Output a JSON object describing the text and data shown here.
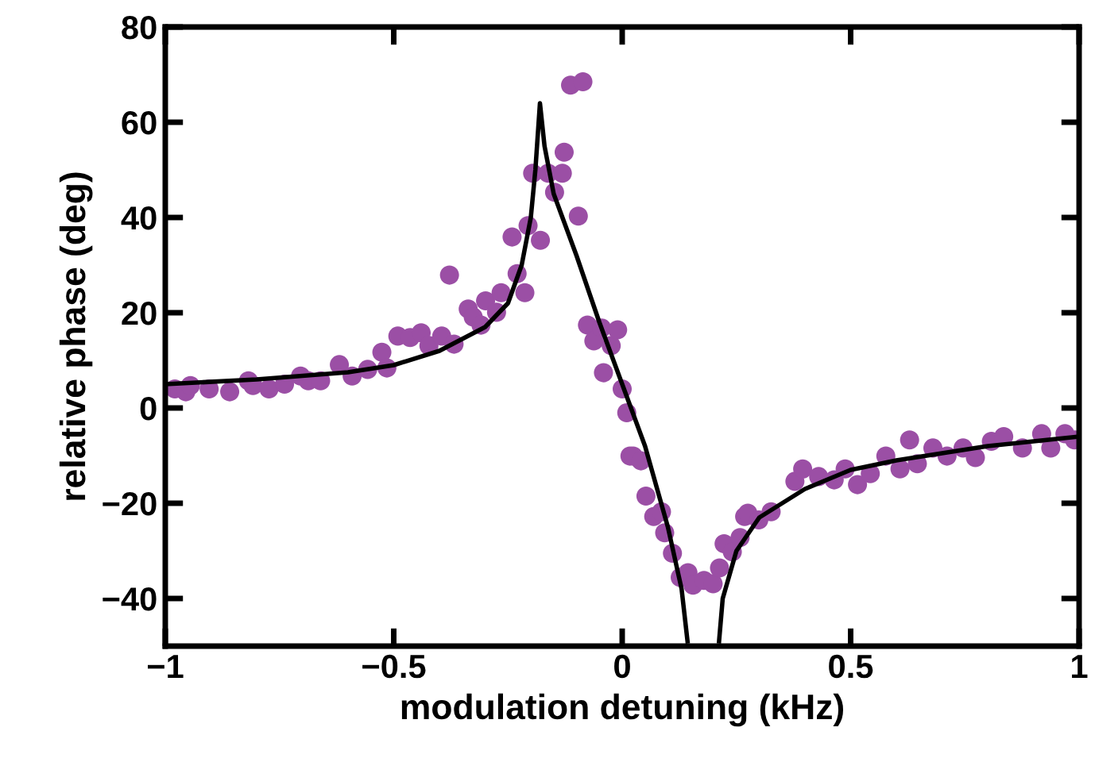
{
  "chart_data": {
    "type": "scatter",
    "xlabel": "modulation detuning (kHz)",
    "ylabel": "relative phase (deg)",
    "xlim": [
      -1,
      1
    ],
    "ylim": [
      -50,
      80
    ],
    "xticks": [
      {
        "value": -1,
        "label": "−1"
      },
      {
        "value": -0.5,
        "label": "−0.5"
      },
      0,
      0.5,
      1
    ],
    "yticks": [
      {
        "value": -40,
        "label": "−40"
      },
      {
        "value": -20,
        "label": "−20"
      },
      0,
      20,
      40,
      60,
      80
    ],
    "grid": false,
    "legend": false,
    "series": [
      {
        "color": "#9b4fa5",
        "marker": "circle",
        "x": [
          -0.979,
          -0.955,
          -0.945,
          -0.904,
          -0.859,
          -0.818,
          -0.808,
          -0.773,
          -0.739,
          -0.704,
          -0.687,
          -0.66,
          -0.619,
          -0.591,
          -0.557,
          -0.526,
          -0.515,
          -0.491,
          -0.464,
          -0.44,
          -0.423,
          -0.395,
          -0.378,
          -0.368,
          -0.337,
          -0.326,
          -0.309,
          -0.299,
          -0.275,
          -0.265,
          -0.241,
          -0.23,
          -0.213,
          -0.206,
          -0.196,
          -0.179,
          -0.162,
          -0.148,
          -0.131,
          -0.127,
          -0.113,
          -0.096,
          -0.086,
          -0.076,
          -0.062,
          -0.045,
          -0.041,
          -0.024,
          -0.01,
          0.0,
          0.01,
          0.017,
          0.024,
          0.041,
          0.052,
          0.069,
          0.086,
          0.093,
          0.11,
          0.127,
          0.144,
          0.155,
          0.179,
          0.199,
          0.213,
          0.223,
          0.241,
          0.258,
          0.268,
          0.275,
          0.299,
          0.326,
          0.378,
          0.395,
          0.43,
          0.464,
          0.488,
          0.515,
          0.543,
          0.577,
          0.608,
          0.629,
          0.646,
          0.68,
          0.711,
          0.746,
          0.773,
          0.808,
          0.835,
          0.876,
          0.918,
          0.938,
          0.969,
          0.99
        ],
        "values": [
          4.0,
          3.4,
          4.7,
          4.0,
          3.4,
          5.7,
          4.7,
          4.0,
          5.0,
          6.7,
          5.7,
          5.7,
          9.1,
          6.7,
          8.1,
          11.7,
          8.4,
          15.1,
          14.8,
          15.8,
          13.1,
          15.1,
          27.9,
          13.4,
          20.8,
          19.1,
          17.4,
          22.5,
          20.1,
          24.2,
          35.9,
          28.2,
          24.2,
          38.3,
          49.3,
          35.2,
          49.3,
          45.3,
          49.3,
          53.7,
          67.8,
          40.3,
          68.5,
          17.4,
          14.1,
          16.8,
          7.4,
          13.1,
          16.4,
          4.0,
          -1.0,
          -10.1,
          -10.1,
          -11.1,
          -18.5,
          -22.8,
          -21.8,
          -26.2,
          -30.5,
          -35.6,
          -34.6,
          -37.2,
          -36.2,
          -36.9,
          -33.6,
          -28.5,
          -30.2,
          -27.2,
          -22.8,
          -22.1,
          -23.5,
          -21.8,
          -15.4,
          -12.8,
          -14.4,
          -15.1,
          -12.8,
          -16.1,
          -13.8,
          -10.1,
          -12.8,
          -6.7,
          -11.7,
          -8.4,
          -10.1,
          -8.4,
          -10.4,
          -7.0,
          -6.0,
          -8.4,
          -5.4,
          -8.4,
          -5.4,
          -6.7
        ]
      },
      {
        "type": "line",
        "color": "#000000",
        "marker": "none",
        "line_style": "solid",
        "x": [
          -1,
          -0.8,
          -0.6,
          -0.5,
          -0.4,
          -0.3,
          -0.25,
          -0.22,
          -0.2,
          -0.19,
          -0.18,
          -0.17,
          -0.15,
          -0.1,
          -0.05,
          0,
          0.05,
          0.1,
          0.13,
          0.143,
          0.18,
          0.212,
          0.22,
          0.25,
          0.3,
          0.4,
          0.5,
          0.6,
          0.7,
          0.8,
          0.9,
          1.0
        ],
        "values": [
          5,
          6,
          7.5,
          9,
          12,
          17,
          22,
          30,
          40,
          50,
          64,
          55,
          45,
          32,
          18,
          5,
          -8,
          -25,
          -38,
          -49,
          null,
          -49,
          -40,
          -30,
          -23,
          -17,
          -13,
          -11,
          -9.5,
          -8,
          -7,
          -6
        ]
      }
    ]
  }
}
